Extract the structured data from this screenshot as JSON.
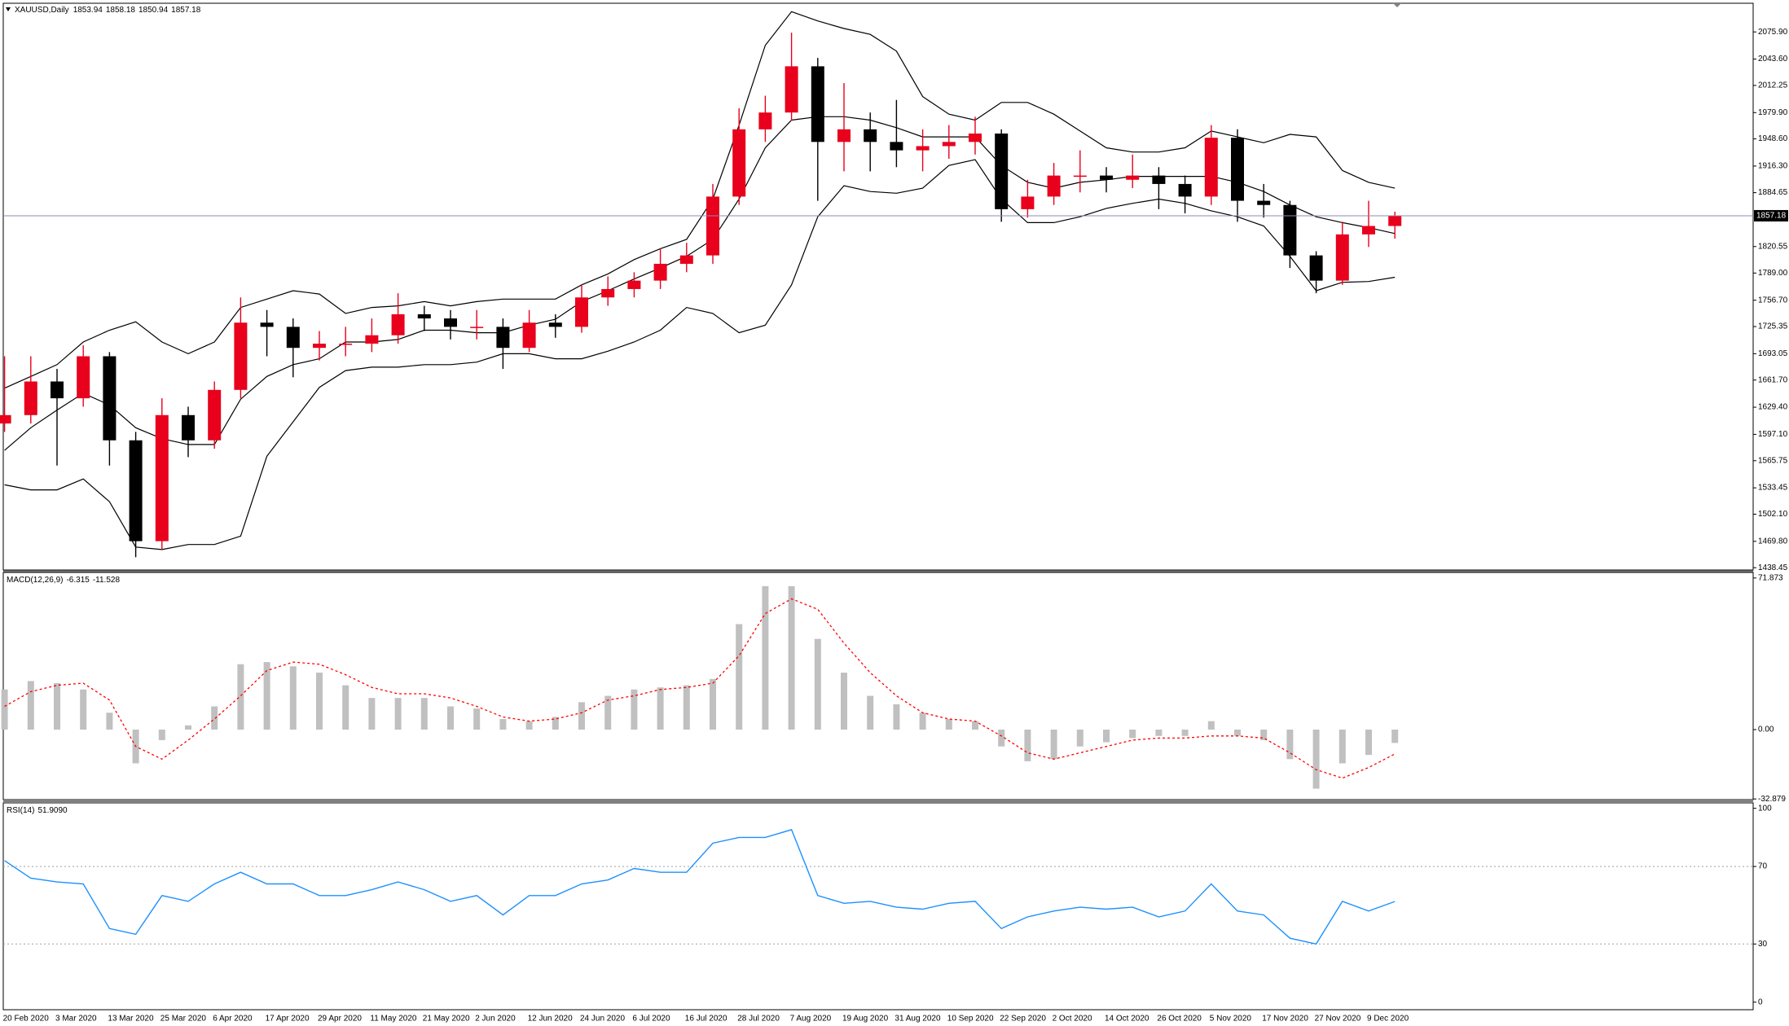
{
  "header": {
    "symbol": "XAUUSD,Daily",
    "open": 1853.94,
    "high": 1858.18,
    "low": 1850.94,
    "close": 1857.18
  },
  "chart_data": [
    {
      "type": "candlestick",
      "categories": [
        "20 Feb 2020",
        null,
        "3 Mar 2020",
        null,
        "13 Mar 2020",
        null,
        "25 Mar 2020",
        null,
        "6 Apr 2020",
        null,
        "17 Apr 2020",
        null,
        "29 Apr 2020",
        null,
        "11 May 2020",
        null,
        "21 May 2020",
        null,
        "2 Jun 2020",
        null,
        "12 Jun 2020",
        null,
        "24 Jun 2020",
        null,
        "6 Jul 2020",
        null,
        "16 Jul 2020",
        null,
        "28 Jul 2020",
        null,
        "7 Aug 2020",
        null,
        "19 Aug 2020",
        null,
        "31 Aug 2020",
        null,
        "10 Sep 2020",
        null,
        "22 Sep 2020",
        null,
        "2 Oct 2020",
        null,
        "14 Oct 2020",
        null,
        "26 Oct 2020",
        null,
        "5 Nov 2020",
        null,
        "17 Nov 2020",
        null,
        "27 Nov 2020",
        null,
        "9 Dec 2020",
        null
      ],
      "open": [
        1610,
        1620,
        1660,
        1640,
        1690,
        1590,
        1470,
        1620,
        1590,
        1650,
        1730,
        1725,
        1700,
        1705,
        1705,
        1715,
        1740,
        1735,
        1725,
        1725,
        1700,
        1730,
        1725,
        1760,
        1770,
        1780,
        1800,
        1810,
        1880,
        1960,
        1980,
        2035,
        1945,
        1960,
        1945,
        1935,
        1940,
        1945,
        1955,
        1865,
        1880,
        1905,
        1905,
        1900,
        1905,
        1895,
        1880,
        1950,
        1875,
        1870,
        1810,
        1780,
        1835,
        1845
      ],
      "high": [
        1690,
        1690,
        1675,
        1703,
        1695,
        1600,
        1640,
        1630,
        1660,
        1760,
        1745,
        1735,
        1720,
        1725,
        1735,
        1765,
        1750,
        1745,
        1745,
        1735,
        1745,
        1740,
        1775,
        1785,
        1790,
        1818,
        1825,
        1895,
        1985,
        2000,
        2075,
        2045,
        2015,
        1980,
        1995,
        1960,
        1965,
        1975,
        1960,
        1900,
        1920,
        1935,
        1915,
        1930,
        1915,
        1905,
        1965,
        1960,
        1895,
        1875,
        1815,
        1850,
        1875,
        1862
      ],
      "low": [
        1600,
        1610,
        1560,
        1630,
        1560,
        1451,
        1460,
        1570,
        1580,
        1640,
        1690,
        1665,
        1685,
        1690,
        1695,
        1705,
        1720,
        1710,
        1710,
        1675,
        1695,
        1712,
        1718,
        1750,
        1760,
        1770,
        1790,
        1800,
        1870,
        1945,
        1970,
        1875,
        1910,
        1910,
        1915,
        1910,
        1925,
        1930,
        1850,
        1855,
        1870,
        1885,
        1885,
        1890,
        1865,
        1860,
        1870,
        1850,
        1855,
        1795,
        1765,
        1775,
        1820,
        1830
      ],
      "close": [
        1620,
        1660,
        1640,
        1690,
        1590,
        1470,
        1620,
        1590,
        1650,
        1730,
        1725,
        1700,
        1705,
        1705,
        1715,
        1740,
        1735,
        1725,
        1725,
        1700,
        1730,
        1725,
        1760,
        1770,
        1780,
        1800,
        1810,
        1880,
        1960,
        1980,
        2035,
        1945,
        1960,
        1945,
        1935,
        1940,
        1945,
        1955,
        1865,
        1880,
        1905,
        1905,
        1900,
        1905,
        1895,
        1880,
        1950,
        1875,
        1870,
        1810,
        1780,
        1835,
        1845,
        1857.18
      ],
      "up_color": "#e8001c",
      "down_color": "#000000",
      "series": [
        {
          "color": "#000000",
          "values": [
            1652,
            1666,
            1680,
            1707,
            1721,
            1731,
            1707,
            1693,
            1707,
            1748,
            1758,
            1768,
            1764,
            1741,
            1748,
            1750,
            1755,
            1750,
            1755,
            1758,
            1758,
            1758,
            1775,
            1788,
            1805,
            1818,
            1829,
            1877,
            1965,
            2060,
            2100,
            2089,
            2080,
            2073,
            2053,
            1999,
            1978,
            1971,
            1992,
            1992,
            1978,
            1958,
            1938,
            1933,
            1933,
            1938,
            1958,
            1951,
            1944,
            1954,
            1951,
            1911,
            1897,
            1890
          ]
        },
        {
          "color": "#000000",
          "values": [
            1578,
            1605,
            1626,
            1646,
            1632,
            1605,
            1592,
            1585,
            1585,
            1639,
            1666,
            1680,
            1687,
            1707,
            1707,
            1710,
            1721,
            1721,
            1718,
            1718,
            1727,
            1734,
            1755,
            1768,
            1782,
            1795,
            1809,
            1829,
            1877,
            1938,
            1971,
            1975,
            1975,
            1971,
            1962,
            1951,
            1951,
            1951,
            1917,
            1897,
            1890,
            1897,
            1900,
            1904,
            1904,
            1904,
            1904,
            1897,
            1886,
            1870,
            1856,
            1849,
            1843,
            1836
          ]
        },
        {
          "color": "#000000",
          "values": [
            1537,
            1531,
            1531,
            1544,
            1517,
            1463,
            1460,
            1466,
            1466,
            1476,
            1571,
            1612,
            1653,
            1673,
            1677,
            1677,
            1680,
            1680,
            1683,
            1693,
            1693,
            1687,
            1687,
            1696,
            1707,
            1721,
            1748,
            1741,
            1718,
            1727,
            1775,
            1856,
            1893,
            1886,
            1884,
            1890,
            1917,
            1924,
            1877,
            1849,
            1849,
            1856,
            1866,
            1872,
            1877,
            1872,
            1863,
            1856,
            1845,
            1809,
            1768,
            1778,
            1779,
            1784
          ]
        }
      ],
      "current_price": 1857.18,
      "current_price_color": "#8c8cb4",
      "ylim": [
        1435.7,
        2110
      ],
      "yticks": [
        {
          "value": 2075.9,
          "label": "2075.90"
        },
        {
          "value": 2043.6,
          "label": "2043.60"
        },
        2012.25,
        {
          "value": 1979.9,
          "label": "1979.90"
        },
        {
          "value": 1948.6,
          "label": "1948.60"
        },
        {
          "value": 1916.3,
          "label": "1916.30"
        },
        1884.65,
        1820.55,
        {
          "value": 1789,
          "label": "1789.00"
        },
        {
          "value": 1756.7,
          "label": "1756.70"
        },
        1725.35,
        1693.05,
        {
          "value": 1661.7,
          "label": "1661.70"
        },
        {
          "value": 1629.4,
          "label": "1629.40"
        },
        {
          "value": 1597.1,
          "label": "1597.10"
        },
        1565.75,
        1533.45,
        {
          "value": 1502.1,
          "label": "1502.10"
        },
        {
          "value": 1469.8,
          "label": "1469.80"
        },
        1438.45
      ]
    },
    {
      "type": "macd",
      "title": "MACD(12,26,9)",
      "title_values": [
        -6.315,
        -11.528
      ],
      "series": [
        {
          "type": "bar",
          "color": "#c0c0c0",
          "values": [
            19,
            23,
            22,
            19,
            8,
            -16,
            -5,
            2,
            11,
            31,
            32,
            30,
            27,
            21,
            15,
            15,
            15,
            11,
            10,
            5,
            4,
            6,
            13,
            16,
            19,
            20,
            21,
            24,
            50,
            68,
            68,
            43,
            27,
            16,
            12,
            8,
            5,
            4,
            -8,
            -15,
            -14,
            -8,
            -6,
            -4,
            -3,
            -3,
            4,
            -3,
            -5,
            -14,
            -28,
            -16,
            -12,
            -6.315
          ]
        },
        {
          "type": "line",
          "color": "#ff0000",
          "dashed": true,
          "values": [
            11,
            18,
            21,
            22,
            14,
            -8,
            -14,
            -5,
            5,
            16,
            28,
            32,
            31,
            26,
            20,
            17,
            17,
            15,
            11,
            6,
            4,
            5,
            8,
            14,
            16,
            19,
            20,
            22,
            35,
            55,
            62,
            57,
            41,
            27,
            16,
            8,
            5,
            4,
            -3,
            -11,
            -14,
            -11,
            -8,
            -5,
            -4,
            -4,
            -3,
            -3,
            -4,
            -11,
            -19,
            -23,
            -18,
            -11.528
          ]
        }
      ],
      "ylim": [
        -33.2,
        74.5
      ],
      "yticks": [
        71.873,
        {
          "value": 0,
          "label": "0.00"
        },
        -32.879
      ]
    },
    {
      "type": "line",
      "title": "RSI(14)",
      "title_value": {
        "value": 51.909,
        "label": "51.9090"
      },
      "series": [
        {
          "color": "#1e90ff",
          "values": [
            73,
            64,
            62,
            61,
            38,
            35,
            55,
            52,
            61,
            67,
            61,
            61,
            55,
            55,
            58,
            62,
            58,
            52,
            55,
            45,
            55,
            55,
            61,
            63,
            69,
            67,
            67,
            82,
            85,
            85,
            89,
            55,
            51,
            52,
            49,
            48,
            51,
            52,
            38,
            44,
            47,
            49,
            48,
            49,
            44,
            47,
            61,
            47,
            45,
            33,
            30,
            52,
            47,
            51.909
          ]
        }
      ],
      "levels": [
        70,
        30
      ],
      "ylim": [
        -3.9,
        102.8
      ],
      "yticks": [
        100,
        70,
        30,
        0
      ]
    }
  ]
}
